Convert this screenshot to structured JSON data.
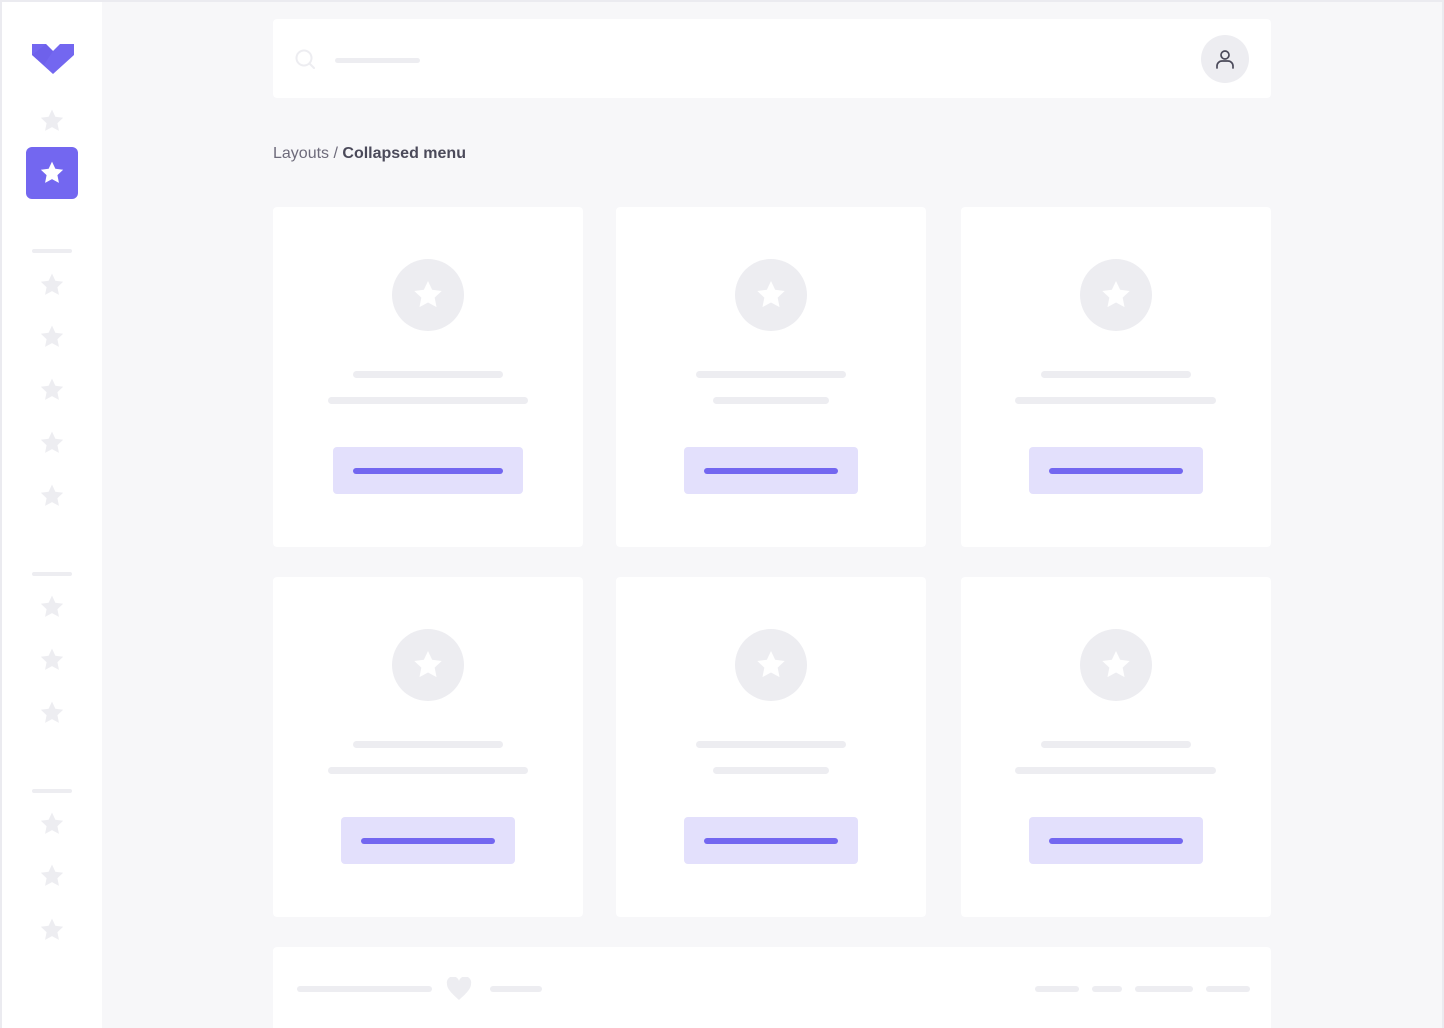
{
  "colors": {
    "accent": "#7367f0",
    "accent_light": "#e3e0fc",
    "placeholder": "#ededf1",
    "background": "#f7f7f9"
  },
  "sidebar": {
    "logo": "brand-logo-icon",
    "groups": [
      {
        "items": [
          {
            "icon": "star-icon",
            "active": false
          },
          {
            "icon": "star-icon",
            "active": true
          }
        ]
      },
      {
        "items": [
          {
            "icon": "star-icon"
          },
          {
            "icon": "star-icon"
          },
          {
            "icon": "star-icon"
          },
          {
            "icon": "star-icon"
          },
          {
            "icon": "star-icon"
          }
        ]
      },
      {
        "items": [
          {
            "icon": "star-icon"
          },
          {
            "icon": "star-icon"
          },
          {
            "icon": "star-icon"
          }
        ]
      },
      {
        "items": [
          {
            "icon": "star-icon"
          },
          {
            "icon": "star-icon"
          },
          {
            "icon": "star-icon"
          }
        ]
      }
    ]
  },
  "topbar": {
    "search_icon": "search-icon",
    "avatar_icon": "user-icon"
  },
  "breadcrumb": {
    "parent": "Layouts",
    "separator": " / ",
    "current": "Collapsed menu"
  },
  "cards": [
    {
      "icon": "star-icon"
    },
    {
      "icon": "star-icon"
    },
    {
      "icon": "star-icon"
    },
    {
      "icon": "star-icon"
    },
    {
      "icon": "star-icon"
    },
    {
      "icon": "star-icon"
    }
  ],
  "footer": {
    "icon": "heart-icon"
  }
}
